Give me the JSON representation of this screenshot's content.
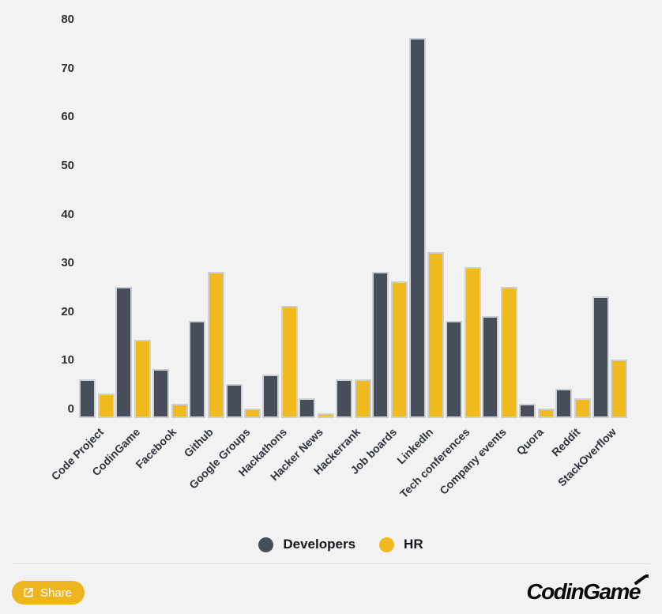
{
  "chart_data": {
    "type": "bar",
    "title": "",
    "categories": [
      "Code Project",
      "CodinGame",
      "Facebook",
      "Github",
      "Google Groups",
      "Hackathons",
      "Hacker News",
      "Hackerrank",
      "Job boards",
      "LinkedIn",
      "Tech conferences",
      "Company events",
      "Quora",
      "Reddit",
      "StackOverflow"
    ],
    "series": [
      {
        "name": "Developers",
        "color": "#474e59",
        "values": [
          8,
          27,
          10,
          20,
          7,
          9,
          4,
          8,
          30,
          78,
          20,
          21,
          3,
          6,
          25
        ]
      },
      {
        "name": "HR",
        "color": "#f0ba1e",
        "values": [
          5,
          16,
          3,
          30,
          2,
          23,
          1,
          8,
          28,
          34,
          31,
          27,
          2,
          4,
          12
        ]
      }
    ],
    "xlabel": "",
    "ylabel": "",
    "ylim": [
      0,
      80
    ],
    "yticks": [
      0,
      10,
      20,
      30,
      40,
      50,
      60,
      70,
      80
    ],
    "grid": false,
    "legend_position": "bottom",
    "bar_outline_color": "#cdd0d4",
    "background_color": "#f2f2f2"
  },
  "footer": {
    "share_label": "Share",
    "brand": "CodinGame"
  }
}
